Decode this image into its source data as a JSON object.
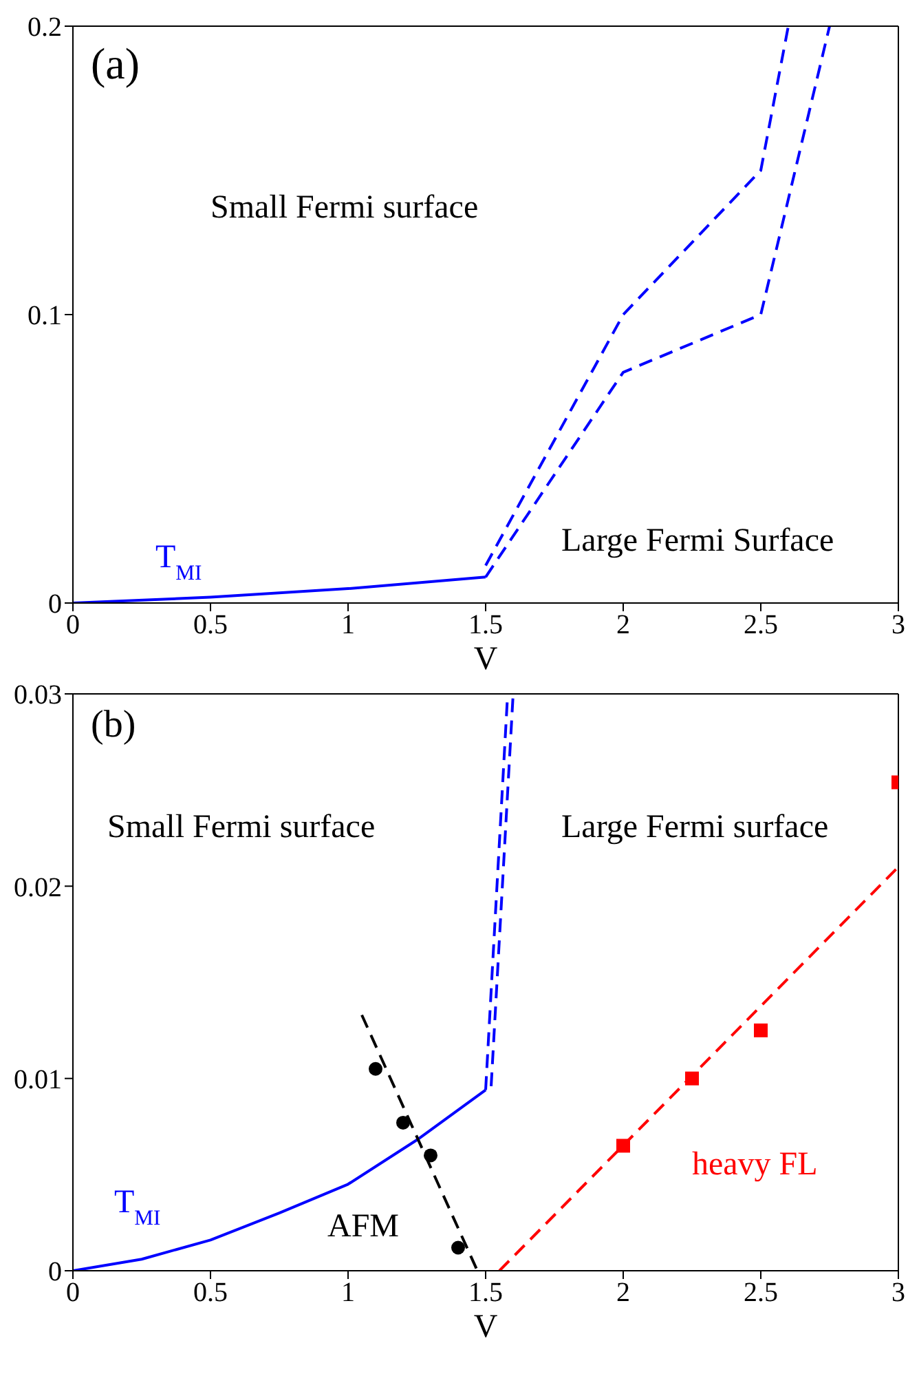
{
  "chart_data": [
    {
      "type": "line",
      "xlabel": "V",
      "xlim": [
        0,
        3
      ],
      "ylim": [
        0,
        0.2
      ],
      "xticks": [
        0,
        0.5,
        1,
        1.5,
        2,
        2.5,
        3
      ],
      "yticks": [
        0,
        0.1,
        0.2
      ],
      "grid": false,
      "annotations": [
        "(a)",
        "Small Fermi surface",
        "Large Fermi Surface"
      ],
      "series": [
        {
          "name": "T$_{MI}$",
          "color": "#0000ff",
          "line_style": "solid",
          "marker": "none",
          "x": [
            0,
            0.5,
            1,
            1.5
          ],
          "values": [
            0,
            0.002,
            0.005,
            0.009
          ]
        },
        {
          "color": "#0000ff",
          "line_style": "dashed",
          "marker": "none",
          "x": [
            1.5,
            2,
            2.5,
            2.6
          ],
          "values": [
            0.013,
            0.1,
            0.15,
            0.2
          ]
        },
        {
          "color": "#0000ff",
          "line_style": "dashed",
          "marker": "none",
          "x": [
            1.5,
            2,
            2.5,
            2.75
          ],
          "values": [
            0.009,
            0.08,
            0.1,
            0.2
          ]
        }
      ]
    },
    {
      "type": "line",
      "xlabel": "V",
      "xlim": [
        0,
        3
      ],
      "ylim": [
        0,
        0.03
      ],
      "xticks": [
        0,
        0.5,
        1,
        1.5,
        2,
        2.5,
        3
      ],
      "yticks": [
        0,
        0.01,
        0.02,
        0.03
      ],
      "grid": false,
      "annotations": [
        "(b)",
        "Small Fermi surface",
        "Large Fermi surface",
        "AFM"
      ],
      "series": [
        {
          "name": "T$_{MI}$",
          "color": "#0000ff",
          "line_style": "solid",
          "marker": "none",
          "x": [
            0,
            0.25,
            0.5,
            0.75,
            1,
            1.25,
            1.5
          ],
          "values": [
            0,
            0.0006,
            0.0016,
            0.003,
            0.0045,
            0.0068,
            0.0094
          ]
        },
        {
          "color": "#0000ff",
          "line_style": "dashed",
          "marker": "none",
          "x": [
            1.5,
            1.58
          ],
          "values": [
            0.0094,
            0.03
          ]
        },
        {
          "color": "#0000ff",
          "line_style": "dashed",
          "marker": "none",
          "x": [
            1.52,
            1.6
          ],
          "values": [
            0.0096,
            0.03
          ]
        },
        {
          "color": "#000000",
          "line_style": "dashed",
          "marker": "none",
          "x": [
            1.05,
            1.47
          ],
          "values": [
            0.0133,
            0
          ]
        },
        {
          "type": "scatter",
          "color": "#000000",
          "marker": "circle",
          "x": [
            1.1,
            1.2,
            1.3,
            1.4
          ],
          "values": [
            0.0105,
            0.0077,
            0.006,
            0.0012
          ]
        },
        {
          "name": "heavy FL",
          "color": "#ff0000",
          "line_style": "dashed",
          "marker": "none",
          "x": [
            1.55,
            3
          ],
          "values": [
            0,
            0.021
          ]
        },
        {
          "type": "scatter",
          "color": "#ff0000",
          "marker": "square",
          "x": [
            2,
            2.25,
            2.5,
            3
          ],
          "values": [
            0.0065,
            0.01,
            0.0125,
            0.0254
          ]
        }
      ]
    }
  ]
}
